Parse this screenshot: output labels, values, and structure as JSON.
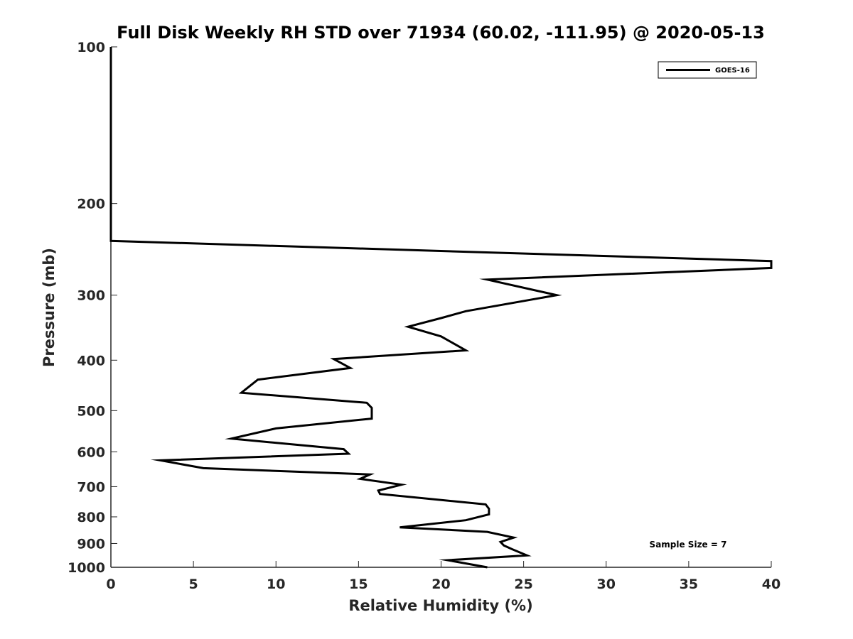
{
  "chart_data": {
    "type": "line",
    "title": "Full Disk Weekly RH STD over 71934 (60.02, -111.95) @ 2020-05-13",
    "xlabel": "Relative Humidity (%)",
    "ylabel": "Pressure (mb)",
    "xlim": [
      0,
      40
    ],
    "ylim": [
      100,
      1000
    ],
    "y_scale": "log",
    "y_reversed": true,
    "grid": false,
    "legend_position": "top-right",
    "x_ticks": [
      "0",
      "5",
      "10",
      "15",
      "20",
      "25",
      "30",
      "35",
      "40"
    ],
    "y_ticks": [
      "100",
      "200",
      "300",
      "400",
      "500",
      "600",
      "700",
      "800",
      "900",
      "1000"
    ],
    "annotation": "Sample Size = 7",
    "series": [
      {
        "name": "GOES-16",
        "color": "#000000",
        "points": [
          [
            0,
            100
          ],
          [
            0,
            150
          ],
          [
            0,
            200
          ],
          [
            0,
            236
          ],
          [
            40,
            258
          ],
          [
            40,
            266
          ],
          [
            22.8,
            280
          ],
          [
            27,
            300
          ],
          [
            21.5,
            322
          ],
          [
            20,
            332
          ],
          [
            18,
            345
          ],
          [
            20,
            360
          ],
          [
            21.5,
            383
          ],
          [
            13.5,
            398
          ],
          [
            14.5,
            414
          ],
          [
            8.9,
            436
          ],
          [
            7.9,
            462
          ],
          [
            15.5,
            483
          ],
          [
            15.8,
            494
          ],
          [
            15.8,
            518
          ],
          [
            10,
            541
          ],
          [
            7.3,
            566
          ],
          [
            14.1,
            593
          ],
          [
            14.4,
            605
          ],
          [
            3,
            623
          ],
          [
            5.6,
            645
          ],
          [
            15.7,
            663
          ],
          [
            15.1,
            676
          ],
          [
            17.6,
            694
          ],
          [
            16.2,
            712
          ],
          [
            16.3,
            723
          ],
          [
            22.7,
            757
          ],
          [
            22.9,
            772
          ],
          [
            22.9,
            791
          ],
          [
            21.5,
            812
          ],
          [
            17.5,
            838
          ],
          [
            22.8,
            855
          ],
          [
            24.4,
            877
          ],
          [
            23.6,
            894
          ],
          [
            23.8,
            908
          ],
          [
            24.3,
            923
          ],
          [
            25.2,
            949
          ],
          [
            20.4,
            969
          ],
          [
            22.8,
            1000
          ]
        ]
      }
    ]
  }
}
